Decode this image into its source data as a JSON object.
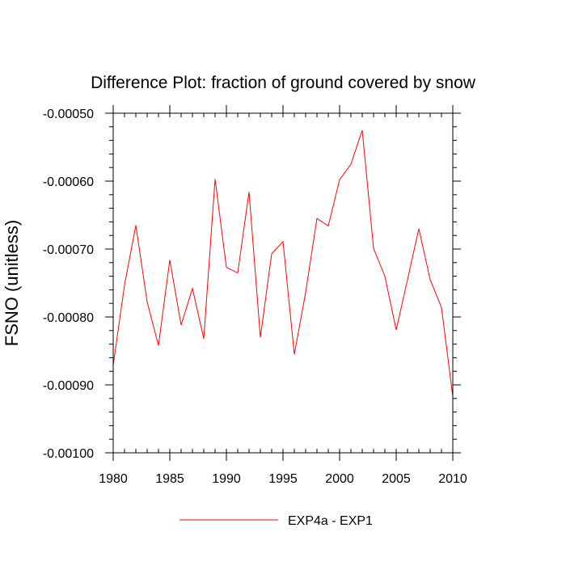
{
  "chart_data": {
    "type": "line",
    "title": "Difference Plot: fraction of ground covered by snow",
    "xlabel": "",
    "ylabel": "FSNO  (unitless)",
    "xlim": [
      1980,
      2010
    ],
    "ylim": [
      -0.001,
      -0.0005
    ],
    "x_ticks": [
      1980,
      1985,
      1990,
      1995,
      2000,
      2005,
      2010
    ],
    "x_tick_labels": [
      "1980",
      "1985",
      "1990",
      "1995",
      "2000",
      "2005",
      "2010"
    ],
    "y_ticks": [
      -0.0005,
      -0.0006,
      -0.0007,
      -0.0008,
      -0.0009,
      -0.001
    ],
    "y_tick_labels": [
      "-0.00050",
      "-0.00060",
      "-0.00070",
      "-0.00080",
      "-0.00090",
      "-0.00100"
    ],
    "grid": false,
    "legend_position": "bottom-center",
    "series": [
      {
        "name": "EXP4a - EXP1",
        "color": "#ff0000",
        "x": [
          1980,
          1981,
          1982,
          1983,
          1984,
          1985,
          1986,
          1987,
          1988,
          1989,
          1990,
          1991,
          1992,
          1993,
          1994,
          1995,
          1996,
          1997,
          1998,
          1999,
          2000,
          2001,
          2002,
          2003,
          2004,
          2005,
          2006,
          2007,
          2008,
          2009,
          2010
        ],
        "y": [
          -0.000871,
          -0.000753,
          -0.000665,
          -0.000778,
          -0.000842,
          -0.000716,
          -0.000812,
          -0.000758,
          -0.000832,
          -0.000597,
          -0.000727,
          -0.000735,
          -0.000616,
          -0.00083,
          -0.000707,
          -0.000689,
          -0.000855,
          -0.000764,
          -0.000655,
          -0.000666,
          -0.000598,
          -0.000575,
          -0.000525,
          -0.000699,
          -0.00074,
          -0.000819,
          -0.000745,
          -0.00067,
          -0.000745,
          -0.000786,
          -0.000917
        ]
      }
    ]
  }
}
